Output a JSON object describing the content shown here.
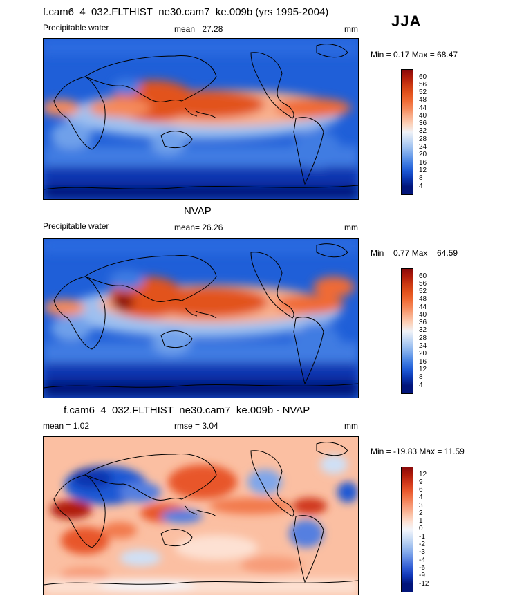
{
  "season": "JJA",
  "panels": [
    {
      "title": "f.cam6_4_032.FLTHIST_ne30.cam7_ke.009b (yrs 1995-2004)",
      "left_label": "Precipitable water",
      "center_label": "mean=  27.28",
      "units": "mm",
      "minmax": "Min =   0.17 Max =  68.47",
      "colorbar": {
        "labels": [
          "60",
          "56",
          "52",
          "48",
          "44",
          "40",
          "36",
          "32",
          "28",
          "24",
          "20",
          "16",
          "12",
          "8",
          "4"
        ],
        "colors": [
          "#8a0a0a",
          "#b01c0a",
          "#cc3a12",
          "#e2521c",
          "#f06b35",
          "#f58a5b",
          "#f9b08d",
          "#fcd3bb",
          "#f0f2f6",
          "#c7dbf5",
          "#9dc0f0",
          "#6fa0ea",
          "#3f7ce2",
          "#1c58d4",
          "#0a36b0",
          "#02157a"
        ]
      }
    },
    {
      "title": "NVAP",
      "left_label": "Precipitable water",
      "center_label": "mean=  26.26",
      "units": "mm",
      "minmax": "Min =   0.77 Max =  64.59",
      "colorbar": {
        "labels": [
          "60",
          "56",
          "52",
          "48",
          "44",
          "40",
          "36",
          "32",
          "28",
          "24",
          "20",
          "16",
          "12",
          "8",
          "4"
        ],
        "colors": [
          "#8a0a0a",
          "#b01c0a",
          "#cc3a12",
          "#e2521c",
          "#f06b35",
          "#f58a5b",
          "#f9b08d",
          "#fcd3bb",
          "#f0f2f6",
          "#c7dbf5",
          "#9dc0f0",
          "#6fa0ea",
          "#3f7ce2",
          "#1c58d4",
          "#0a36b0",
          "#02157a"
        ]
      }
    },
    {
      "title": "f.cam6_4_032.FLTHIST_ne30.cam7_ke.009b - NVAP",
      "left_label": "mean =   1.02",
      "center_label": "rmse =   3.04",
      "units": "mm",
      "minmax": "Min = -19.83 Max =  11.59",
      "colorbar": {
        "labels": [
          "12",
          "9",
          "6",
          "4",
          "3",
          "2",
          "1",
          "0",
          "-1",
          "-2",
          "-3",
          "-4",
          "-6",
          "-9",
          "-12"
        ],
        "colors": [
          "#8a0a0a",
          "#b01c0a",
          "#d0381a",
          "#e8572c",
          "#f27a4e",
          "#f79b78",
          "#fbbfa2",
          "#fde1d3",
          "#f4f6fb",
          "#cfe0f6",
          "#a9c6f0",
          "#7fa6ea",
          "#557fe0",
          "#2c58d2",
          "#0e34b4",
          "#02157a"
        ]
      }
    }
  ]
}
